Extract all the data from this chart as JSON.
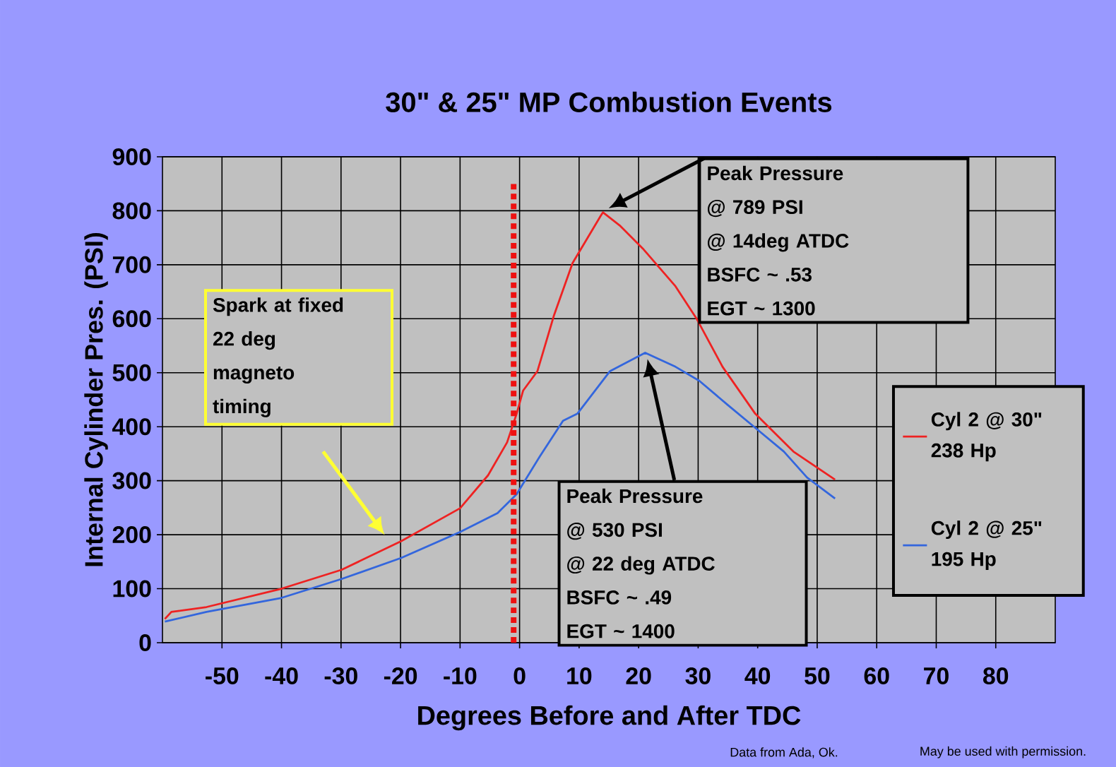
{
  "chart_data": {
    "type": "line",
    "title": "30\" & 25\" MP  Combustion Events",
    "xlabel": "Degrees Before and After TDC",
    "ylabel": "Internal Cylinder Pres. (PSI)",
    "xlim": [
      -60,
      90
    ],
    "xticks": [
      -50,
      -40,
      -30,
      -20,
      -10,
      0,
      10,
      20,
      30,
      40,
      50,
      60,
      70,
      80
    ],
    "ylim": [
      0,
      900
    ],
    "yticks": [
      0,
      100,
      200,
      300,
      400,
      500,
      600,
      700,
      800,
      900
    ],
    "grid": true,
    "legend": "right",
    "marker": "none",
    "line_style": "solid",
    "series": [
      {
        "name": "Cyl  2  @ 30\"    238 Hp",
        "color": "#ee2222",
        "x": [
          -59.6,
          -58.5,
          -52.6,
          -40,
          -29.9,
          -19.9,
          -10,
          -5.3,
          -2.1,
          -0.5,
          0.6,
          3.0,
          5.8,
          8.9,
          13.6,
          14.0,
          16.8,
          20.7,
          26.2,
          29.8,
          34.1,
          39.6,
          46,
          53
        ],
        "values": [
          44,
          57,
          66,
          100,
          135,
          188,
          249,
          310,
          371,
          424,
          467,
          503,
          607,
          703,
          790,
          797,
          773,
          730,
          660,
          599,
          511,
          424,
          354,
          302
        ]
      },
      {
        "name": "Cyl  2 @ 25\" 195 Hp",
        "color": "#3366dd",
        "x": [
          -59.6,
          -52.6,
          -40,
          -29.9,
          -19.9,
          -10,
          -3.7,
          -0.5,
          3.4,
          7.3,
          9.7,
          15.2,
          21.1,
          26.2,
          30.2,
          34.9,
          39.6,
          44.4,
          48.3,
          53
        ],
        "values": [
          39,
          57,
          83,
          118,
          157,
          205,
          240,
          275,
          345,
          411,
          424,
          503,
          537,
          511,
          485,
          441,
          398,
          354,
          306,
          267
        ]
      }
    ],
    "ref_lines": [
      {
        "axis": "x",
        "value": -1,
        "color": "#ee1111",
        "line_style": "dotted"
      }
    ],
    "annotations": [
      "Data from  Ada, Ok.",
      "May be used with permission.",
      "Peak Pressure",
      "@ 789 PSI",
      "@ 14deg ATDC",
      "BSFC ~ .53",
      "EGT ~ 1300",
      "Peak Pressure",
      "@  530 PSI",
      "@ 22 deg   ATDC",
      "BSFC ~ .49",
      "EGT ~ 1400",
      "Spark at fixed",
      "22 deg",
      "magneto",
      "timing"
    ]
  }
}
